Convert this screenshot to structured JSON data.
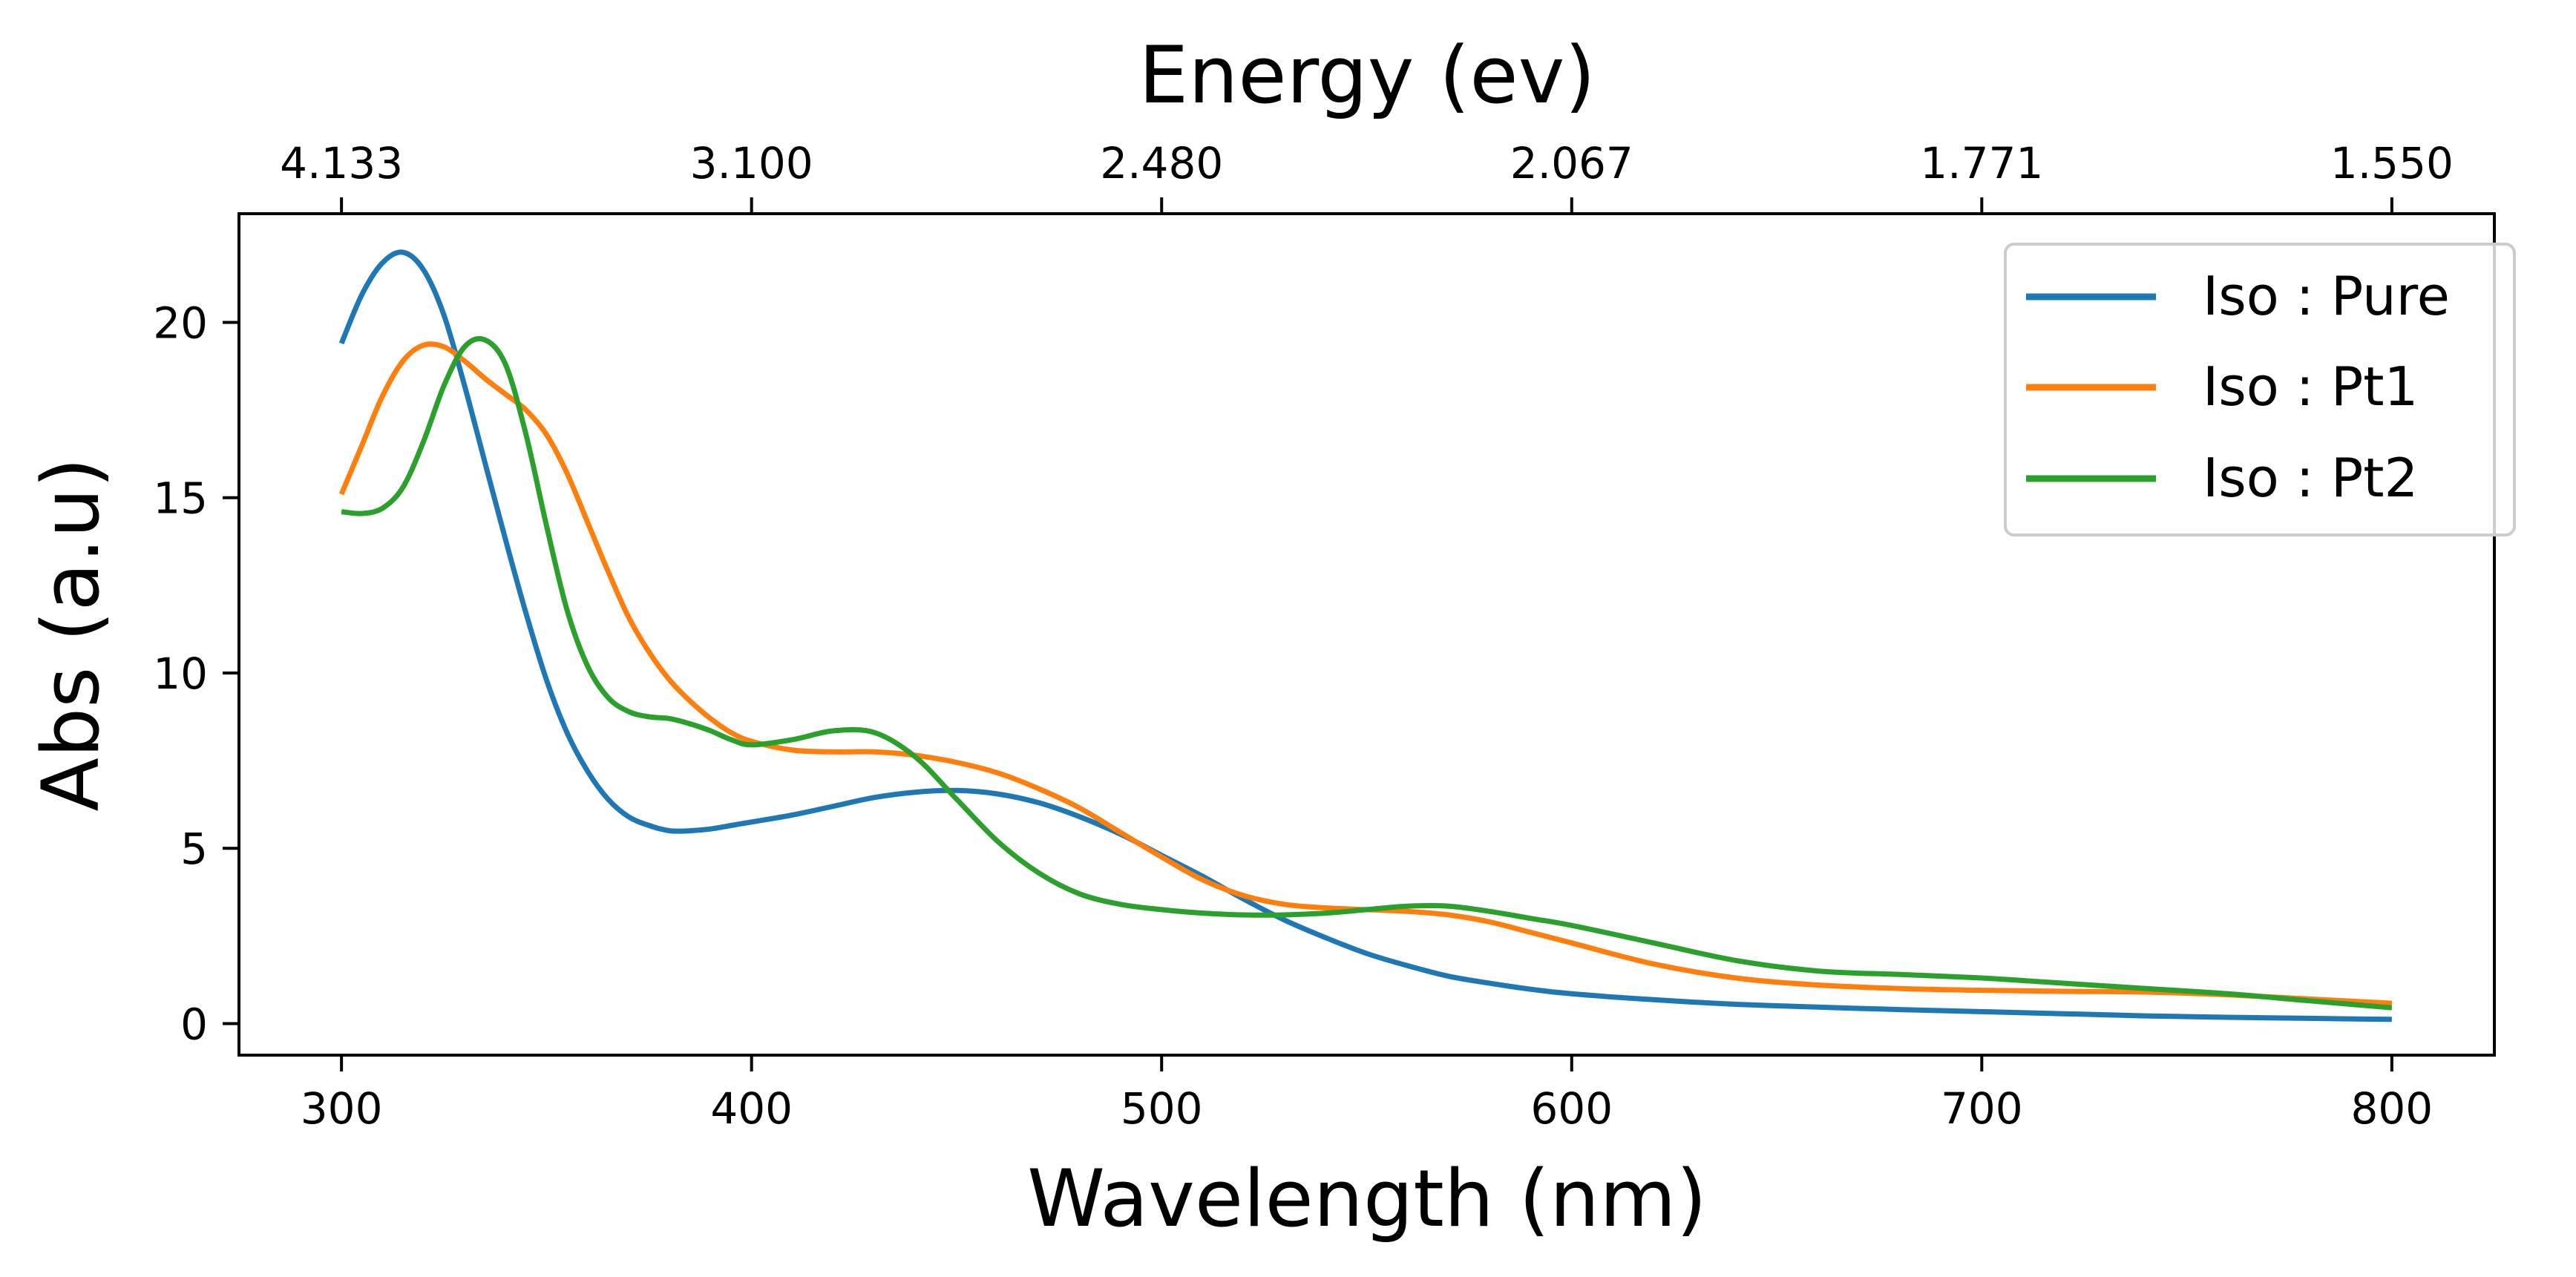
{
  "chart_data": {
    "type": "line",
    "title": "",
    "xlabel": "Wavelength (nm)",
    "ylabel": "Abs (a.u)",
    "top_xlabel": "Energy (ev)",
    "xlim": [
      275,
      825
    ],
    "ylim": [
      -0.9,
      23.1
    ],
    "x_ticks": [
      300,
      400,
      500,
      600,
      700,
      800
    ],
    "x_tick_labels": [
      "300",
      "400",
      "500",
      "600",
      "700",
      "800"
    ],
    "y_ticks": [
      0,
      5,
      10,
      15,
      20
    ],
    "y_tick_labels": [
      "0",
      "5",
      "10",
      "15",
      "20"
    ],
    "top_ticks_at_wavelength": [
      300,
      400,
      500,
      600,
      700,
      800
    ],
    "top_tick_labels": [
      "4.133",
      "3.100",
      "2.480",
      "2.067",
      "1.771",
      "1.550"
    ],
    "grid": false,
    "legend_position": "top-right",
    "x": [
      300,
      305,
      310,
      315,
      320,
      325,
      330,
      335,
      340,
      345,
      350,
      355,
      360,
      365,
      370,
      375,
      380,
      385,
      390,
      395,
      400,
      410,
      420,
      430,
      440,
      450,
      460,
      470,
      480,
      490,
      500,
      510,
      520,
      530,
      540,
      550,
      560,
      570,
      580,
      590,
      600,
      620,
      640,
      660,
      680,
      700,
      720,
      740,
      760,
      780,
      800
    ],
    "series": [
      {
        "name": "Iso : Pure",
        "color": "#1f77b4",
        "values": [
          19.4,
          20.8,
          21.7,
          22.0,
          21.5,
          20.2,
          18.2,
          16.0,
          13.8,
          11.7,
          9.8,
          8.3,
          7.2,
          6.4,
          5.9,
          5.65,
          5.5,
          5.5,
          5.55,
          5.65,
          5.75,
          5.95,
          6.2,
          6.45,
          6.6,
          6.65,
          6.55,
          6.3,
          5.9,
          5.4,
          4.8,
          4.2,
          3.55,
          2.95,
          2.45,
          2.0,
          1.65,
          1.35,
          1.15,
          0.98,
          0.85,
          0.68,
          0.55,
          0.47,
          0.4,
          0.34,
          0.28,
          0.22,
          0.18,
          0.15,
          0.12
        ]
      },
      {
        "name": "Iso : Pt1",
        "color": "#ff7f0e",
        "values": [
          15.1,
          16.5,
          17.9,
          18.9,
          19.35,
          19.3,
          18.9,
          18.4,
          17.95,
          17.5,
          16.8,
          15.7,
          14.3,
          12.9,
          11.6,
          10.6,
          9.8,
          9.2,
          8.7,
          8.3,
          8.05,
          7.8,
          7.75,
          7.75,
          7.65,
          7.45,
          7.15,
          6.7,
          6.15,
          5.45,
          4.75,
          4.1,
          3.65,
          3.4,
          3.3,
          3.25,
          3.2,
          3.1,
          2.9,
          2.6,
          2.3,
          1.7,
          1.3,
          1.1,
          1.0,
          0.95,
          0.92,
          0.9,
          0.82,
          0.7,
          0.58
        ]
      },
      {
        "name": "Iso : Pt2",
        "color": "#2ca02c",
        "values": [
          14.6,
          14.55,
          14.7,
          15.3,
          16.6,
          18.2,
          19.3,
          19.5,
          18.8,
          16.8,
          14.2,
          11.8,
          10.2,
          9.3,
          8.9,
          8.75,
          8.7,
          8.55,
          8.35,
          8.1,
          7.95,
          8.1,
          8.35,
          8.3,
          7.6,
          6.4,
          5.2,
          4.3,
          3.7,
          3.4,
          3.25,
          3.15,
          3.1,
          3.1,
          3.15,
          3.25,
          3.35,
          3.35,
          3.2,
          3.0,
          2.8,
          2.3,
          1.8,
          1.5,
          1.4,
          1.3,
          1.15,
          1.0,
          0.85,
          0.65,
          0.45
        ]
      }
    ]
  }
}
